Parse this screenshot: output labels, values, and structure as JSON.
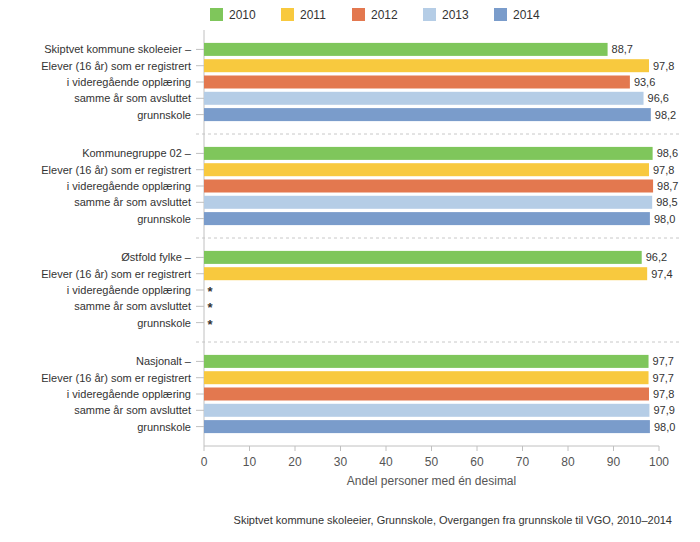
{
  "chart_data": {
    "type": "bar",
    "orientation": "horizontal",
    "title": "Skiptvet kommune skoleeier, Grunnskole, Overgangen fra grunnskole til VGO, 2010–2014",
    "x_label": "Andel personer med én desimal",
    "categories": [
      "Skiptvet kommune skoleeier –\nElever (16 år) som er registrert\ni videregående opplæring\nsamme år som avsluttet\ngrunnskole",
      "Kommunegruppe 02 –\nElever (16 år) som er registrert\ni videregående opplæring\nsamme år som avsluttet\ngrunnskole",
      "Østfold fylke –\nElever (16 år) som er registrert\ni videregående opplæring\nsamme år som avsluttet\ngrunnskole",
      "Nasjonalt –\nElever (16 år) som er registrert\ni videregående opplæring\nsamme år som avsluttet\ngrunnskole"
    ],
    "series": [
      {
        "name": "2010",
        "color": "#7fc65b",
        "values": [
          88.7,
          98.6,
          96.2,
          97.7
        ],
        "value_labels": [
          "88,7",
          "98,6",
          "96,2",
          "97,7"
        ]
      },
      {
        "name": "2011",
        "color": "#f8c93e",
        "values": [
          97.8,
          97.8,
          97.4,
          97.7
        ],
        "value_labels": [
          "97,8",
          "97,8",
          "97,4",
          "97,7"
        ]
      },
      {
        "name": "2012",
        "color": "#e3784f",
        "values": [
          93.6,
          98.7,
          null,
          97.8
        ],
        "value_labels": [
          "93,6",
          "98,7",
          "*",
          "97,8"
        ]
      },
      {
        "name": "2013",
        "color": "#b5cde6",
        "values": [
          96.6,
          98.5,
          null,
          97.9
        ],
        "value_labels": [
          "96,6",
          "98,5",
          "*",
          "97,9"
        ]
      },
      {
        "name": "2014",
        "color": "#7a9ccb",
        "values": [
          98.2,
          98.0,
          null,
          98.0
        ],
        "value_labels": [
          "98,2",
          "98,0",
          "*",
          "98,0"
        ]
      }
    ],
    "xlim": [
      0,
      100
    ],
    "xticks": [
      0,
      10,
      20,
      30,
      40,
      50,
      60,
      70,
      80,
      90,
      100
    ],
    "grid": false,
    "legend": "top",
    "data_labels": true
  }
}
